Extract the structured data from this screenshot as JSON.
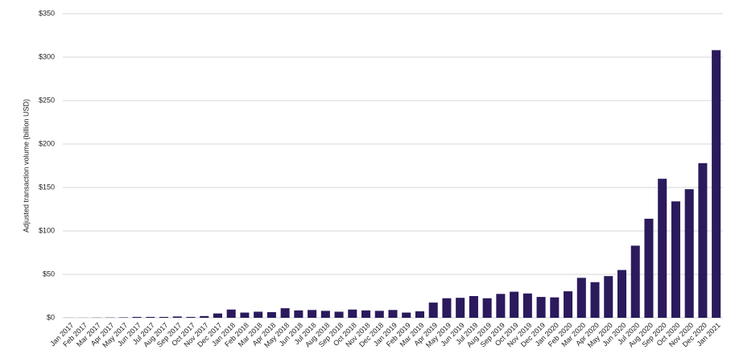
{
  "chart_data": {
    "type": "bar",
    "y_label": "Adjusted transaction volume (billion USD)",
    "categories": [
      "Jan 2017",
      "Feb 2017",
      "Mar 2017",
      "Apr 2017",
      "May 2017",
      "Jun 2017",
      "Jul 2017",
      "Aug 2017",
      "Sep 2017",
      "Oct 2017",
      "Nov 2017",
      "Dec 2017",
      "Jan 2018",
      "Feb 2018",
      "Mar 2018",
      "Apr 2018",
      "May 2018",
      "Jun 2018",
      "Jul 2018",
      "Aug 2018",
      "Sep 2018",
      "Oct 2018",
      "Nov 2018",
      "Dec 2018",
      "Jan 2019",
      "Feb 2019",
      "Mar 2019",
      "Apr 2019",
      "May 2019",
      "Jun 2019",
      "Jul 2019",
      "Aug 2019",
      "Sep 2019",
      "Oct 2019",
      "Nov 2019",
      "Dec 2019",
      "Jan 2020",
      "Feb 2020",
      "Mar 2020",
      "Apr 2020",
      "May 2020",
      "Jun 2020",
      "Jul 2020",
      "Aug 2020",
      "Sep 2020",
      "Oct 2020",
      "Nov 2020",
      "Dec 2020",
      "Jan 2021"
    ],
    "values": [
      0.1,
      0.1,
      0.2,
      0.3,
      0.5,
      1,
      1,
      1,
      1.5,
      1,
      2,
      5,
      9.5,
      6,
      7,
      6.5,
      11,
      8.5,
      9,
      8,
      7,
      9.5,
      8.5,
      8,
      9,
      6,
      7.5,
      17.5,
      22.5,
      23,
      25,
      22.5,
      27.5,
      30,
      28,
      24,
      23.5,
      30.5,
      46,
      41,
      48,
      55,
      83,
      114,
      160,
      134,
      148,
      178,
      308
    ],
    "color": "#2b1a5c",
    "ylim": [
      0,
      350
    ],
    "yticks": [
      {
        "value": 0,
        "label": "$0"
      },
      {
        "value": 50,
        "label": "$50"
      },
      {
        "value": 100,
        "label": "$100"
      },
      {
        "value": 150,
        "label": "$150"
      },
      {
        "value": 200,
        "label": "$200"
      },
      {
        "value": 250,
        "label": "$250"
      },
      {
        "value": 300,
        "label": "$300"
      },
      {
        "value": 350,
        "label": "$350"
      }
    ],
    "grid": true
  }
}
